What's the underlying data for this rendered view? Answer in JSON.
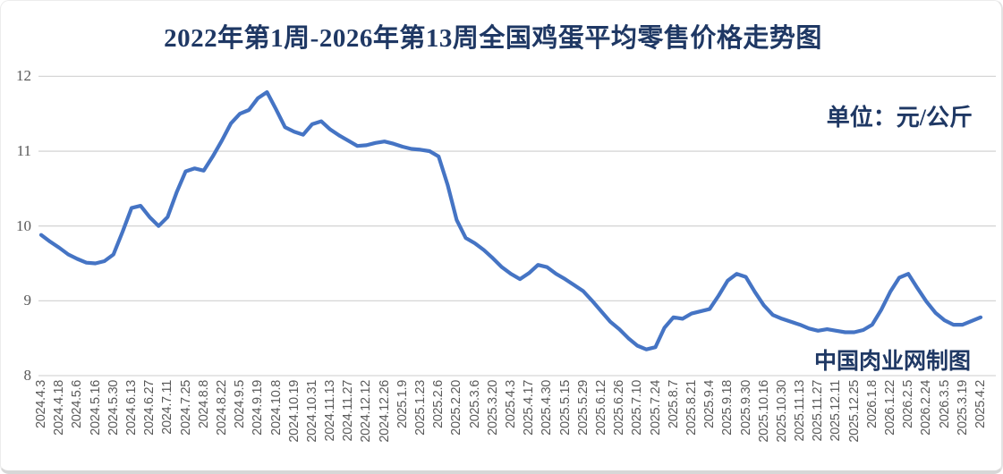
{
  "chart": {
    "title": "2022年第1周-2026年第13周全国鸡蛋平均零售价格走势图",
    "unit_label": "单位：元/公斤",
    "watermark": "中国肉业网制图",
    "title_color": "#1f3864",
    "line_color": "#4574c4",
    "gridline_color": "#d6d6d6",
    "axis_text_color": "#595959",
    "background_color": "#ffffff"
  },
  "chart_data": {
    "type": "line",
    "title": "2022年第1周-2026年第13周全国鸡蛋平均零售价格走势图",
    "ylabel": "元/公斤",
    "ylim": [
      8,
      12
    ],
    "yticks": [
      8,
      9,
      10,
      11,
      12
    ],
    "grid": "horizontal",
    "legend": "none",
    "categories": [
      "2024.4.3",
      "2024.4.18",
      "2024.5.6",
      "2024.5.16",
      "2024.5.30",
      "2024.6.13",
      "2024.6.27",
      "2024.7.11",
      "2024.7.25",
      "2024.8.8",
      "2024.8.22",
      "2024.9.5",
      "2024.9.19",
      "2024.10.8",
      "2024.10.19",
      "2024.10.31",
      "2024.11.13",
      "2024.11.27",
      "2024.12.12",
      "2024.12.26",
      "2025.1.9",
      "2025.1.23",
      "2025.2.6",
      "2025.2.20",
      "2025.3.6",
      "2025.3.20",
      "2025.4.3",
      "2025.4.17",
      "2025.4.30",
      "2025.5.15",
      "2025.5.29",
      "2025.6.12",
      "2025.6.26",
      "2025.7.10",
      "2025.7.24",
      "2025.8.7",
      "2025.8.21",
      "2025.9.4",
      "2025.9.18",
      "2025.9.30",
      "2025.10.16",
      "2025.10.30",
      "2025.11.13",
      "2025.11.27",
      "2025.12.11",
      "2025.12.25",
      "2026.1.8",
      "2026.1.22",
      "2026.2.5",
      "2026.2.24",
      "2026.3.5",
      "2025.3.19",
      "2025.4.2"
    ],
    "points_per_category": 2,
    "values": [
      9.88,
      9.79,
      9.71,
      9.62,
      9.56,
      9.51,
      9.5,
      9.53,
      9.62,
      9.92,
      10.24,
      10.27,
      10.12,
      10.0,
      10.12,
      10.45,
      10.73,
      10.77,
      10.74,
      10.93,
      11.14,
      11.37,
      11.5,
      11.55,
      11.71,
      11.79,
      11.56,
      11.32,
      11.26,
      11.22,
      11.36,
      11.4,
      11.29,
      11.21,
      11.14,
      11.07,
      11.08,
      11.11,
      11.13,
      11.1,
      11.06,
      11.03,
      11.02,
      11.0,
      10.93,
      10.55,
      10.08,
      9.84,
      9.77,
      9.68,
      9.57,
      9.45,
      9.36,
      9.29,
      9.37,
      9.48,
      9.45,
      9.36,
      9.29,
      9.21,
      9.13,
      9.0,
      8.86,
      8.72,
      8.62,
      8.5,
      8.4,
      8.35,
      8.38,
      8.64,
      8.78,
      8.76,
      8.83,
      8.86,
      8.89,
      9.07,
      9.27,
      9.36,
      9.32,
      9.12,
      8.94,
      8.81,
      8.76,
      8.72,
      8.68,
      8.63,
      8.6,
      8.62,
      8.6,
      8.58,
      8.58,
      8.61,
      8.68,
      8.88,
      9.12,
      9.31,
      9.36,
      9.17,
      8.99,
      8.84,
      8.74,
      8.68,
      8.68,
      8.73,
      8.78
    ]
  }
}
